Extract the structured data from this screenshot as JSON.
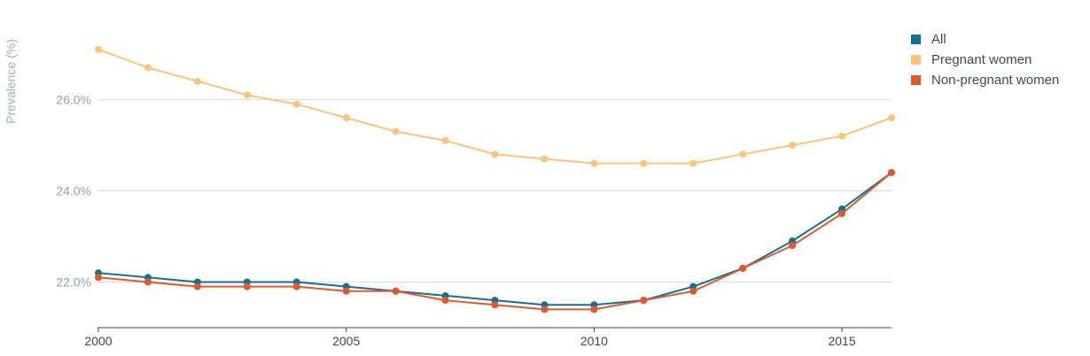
{
  "chart_data": {
    "type": "line",
    "title": "",
    "xlabel": "",
    "ylabel": "Prevalence (%)",
    "x": [
      2000,
      2001,
      2002,
      2003,
      2004,
      2005,
      2006,
      2007,
      2008,
      2009,
      2010,
      2011,
      2012,
      2013,
      2014,
      2015,
      2016
    ],
    "xlim": [
      2000,
      2016
    ],
    "ylim": [
      21.0,
      27.6
    ],
    "x_ticks": [
      2000,
      2005,
      2010,
      2015
    ],
    "x_tick_labels": [
      "2000",
      "2005",
      "2010",
      "2015"
    ],
    "y_ticks": [
      22,
      24,
      26
    ],
    "y_tick_labels": [
      "22.0%",
      "24.0%",
      "26.0%"
    ],
    "grid": "horizontal",
    "legend_position": "right",
    "series": [
      {
        "name": "All",
        "color": "#15718b",
        "values": [
          22.2,
          22.1,
          22.0,
          22.0,
          22.0,
          21.9,
          21.8,
          21.7,
          21.6,
          21.5,
          21.5,
          21.6,
          21.9,
          22.3,
          22.9,
          23.6,
          24.4
        ]
      },
      {
        "name": "Pregnant women",
        "color": "#fbc47b",
        "values": [
          27.1,
          26.7,
          26.4,
          26.1,
          25.9,
          25.6,
          25.3,
          25.1,
          24.8,
          24.7,
          24.6,
          24.6,
          24.6,
          24.8,
          25.0,
          25.2,
          25.6
        ]
      },
      {
        "name": "Non-pregnant women",
        "color": "#e2582a",
        "values": [
          22.1,
          22.0,
          21.9,
          21.9,
          21.9,
          21.8,
          21.8,
          21.6,
          21.5,
          21.4,
          21.4,
          21.6,
          21.8,
          22.3,
          22.8,
          23.5,
          24.4
        ]
      }
    ]
  },
  "legend": {
    "items": [
      {
        "label": "All",
        "color": "#15718b"
      },
      {
        "label": "Pregnant women",
        "color": "#fbc47b"
      },
      {
        "label": "Non-pregnant women",
        "color": "#e2582a"
      }
    ]
  }
}
